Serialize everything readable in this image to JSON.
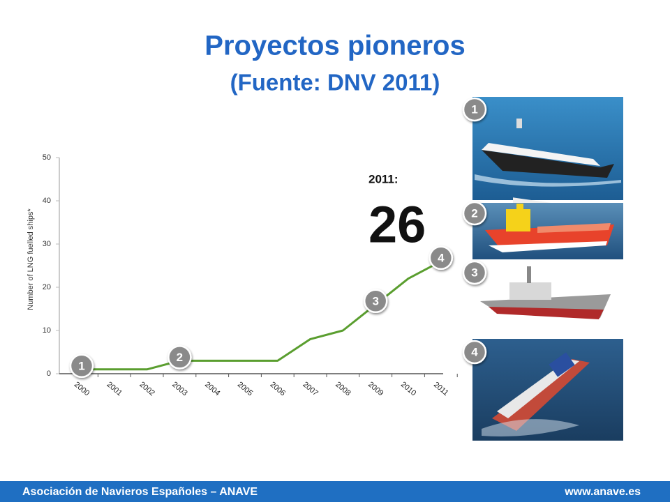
{
  "title": "Proyectos pioneros",
  "subtitle": "(Fuente: DNV 2011)",
  "chart_data": {
    "type": "line",
    "y_label": "Number of LNG fuelled ships*",
    "categories": [
      "2000",
      "2001",
      "2002",
      "2003",
      "2004",
      "2005",
      "2006",
      "2007",
      "2008",
      "2009",
      "2010",
      "2011"
    ],
    "series": [
      {
        "name": "LNG fuelled ships",
        "color": "#5a9e2f",
        "values": [
          1,
          1,
          1,
          3,
          3,
          3,
          3,
          8,
          10,
          16,
          22,
          26
        ]
      }
    ],
    "ylim": [
      0,
      50
    ],
    "yticks": [
      0,
      10,
      20,
      30,
      40,
      50
    ],
    "grid": false,
    "annotation_label": "2011:",
    "annotation_value": "26",
    "markers": [
      {
        "label": "1",
        "x": "2000"
      },
      {
        "label": "2",
        "x": "2003"
      },
      {
        "label": "3",
        "x": "2009"
      },
      {
        "label": "4",
        "x": "2011"
      }
    ]
  },
  "photo_badges": [
    "1",
    "2",
    "3",
    "4"
  ],
  "footer": {
    "left": "Asociación de Navieros Españoles – ANAVE",
    "right": "www.anave.es"
  }
}
